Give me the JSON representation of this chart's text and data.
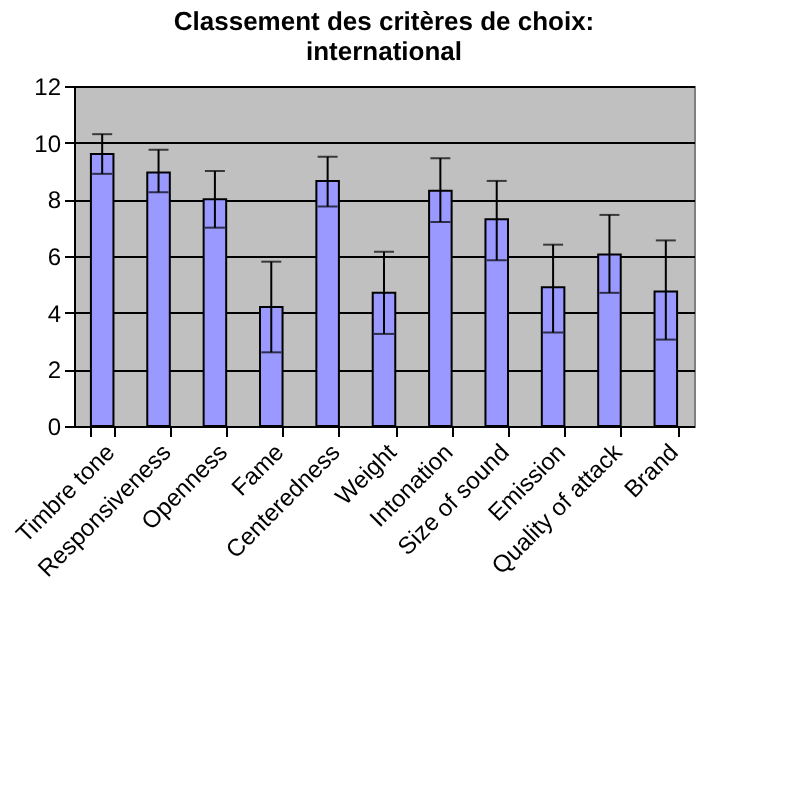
{
  "chart_data": {
    "type": "bar",
    "title": "Classement des critères de choix: international",
    "categories": [
      "Timbre tone",
      "Responsiveness",
      "Openness",
      "Fame",
      "Centeredness",
      "Weight",
      "Intonation",
      "Size of sound",
      "Emission",
      "Quality of attack",
      "Brand"
    ],
    "values": [
      9.6,
      8.95,
      8.0,
      4.2,
      8.65,
      4.7,
      8.3,
      7.3,
      4.9,
      6.05,
      4.75
    ],
    "errors": [
      [
        8.9,
        10.3
      ],
      [
        8.25,
        9.75
      ],
      [
        7.0,
        9.0
      ],
      [
        2.6,
        5.8
      ],
      [
        7.75,
        9.5
      ],
      [
        3.25,
        6.15
      ],
      [
        7.2,
        9.45
      ],
      [
        5.85,
        8.65
      ],
      [
        3.3,
        6.4
      ],
      [
        4.7,
        7.45
      ],
      [
        3.05,
        6.55
      ]
    ],
    "color": "#9999ff",
    "ylim": [
      0,
      12
    ],
    "yticks": [
      0,
      2,
      4,
      6,
      8,
      10,
      12
    ],
    "grid": "y"
  }
}
